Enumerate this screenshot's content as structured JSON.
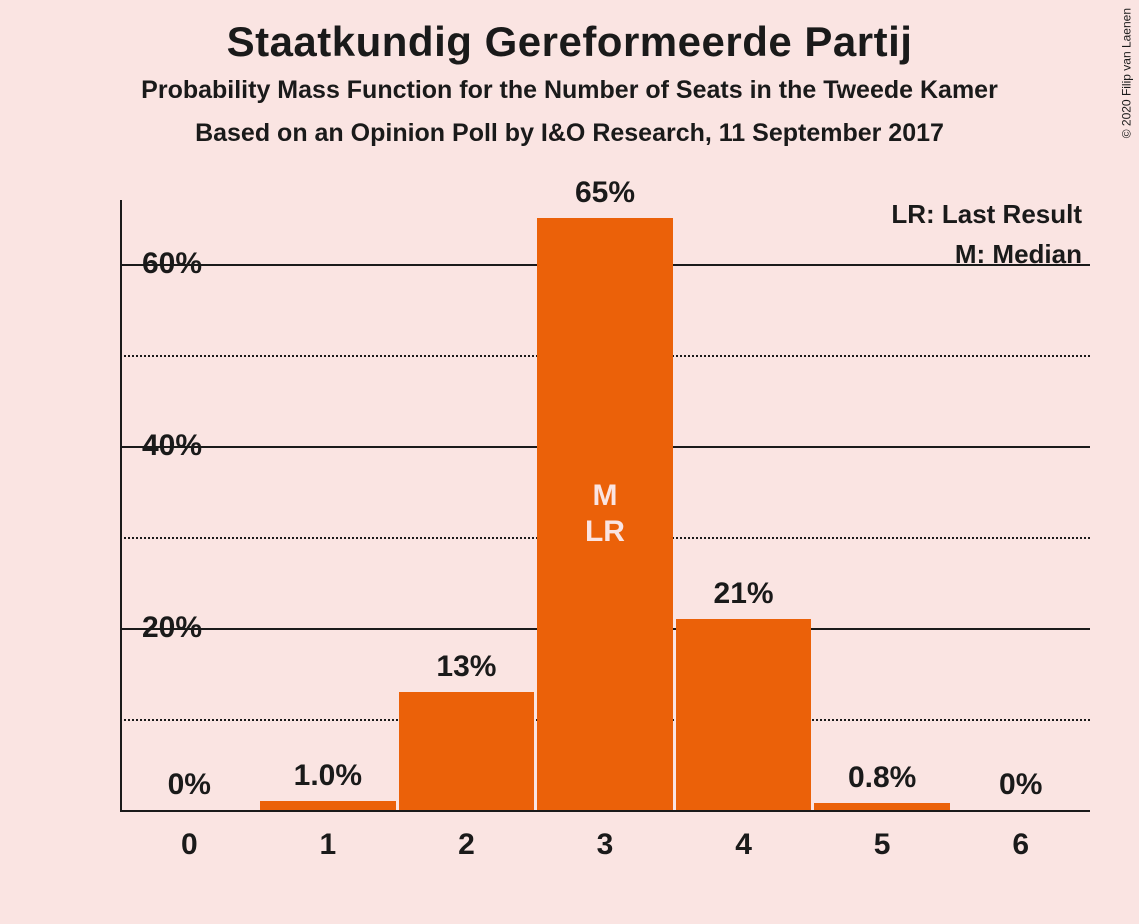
{
  "title": "Staatkundig Gereformeerde Partij",
  "subtitle1": "Probability Mass Function for the Number of Seats in the Tweede Kamer",
  "subtitle2": "Based on an Opinion Poll by I&O Research, 11 September 2017",
  "copyright": "© 2020 Filip van Laenen",
  "legend": {
    "lr": "LR: Last Result",
    "m": "M: Median"
  },
  "chart": {
    "type": "bar",
    "bar_color": "#eb6109",
    "bar_label_color": "#fae4e2",
    "text_color": "#1a1a1a",
    "background_color": "#fae4e2",
    "title_fontsize": 42,
    "subtitle_fontsize": 25,
    "axis_label_fontsize": 30,
    "bar_label_fontsize": 30,
    "ylim": [
      0,
      67
    ],
    "y_major_ticks": [
      0,
      20,
      40,
      60
    ],
    "y_minor_ticks": [
      10,
      30,
      50
    ],
    "y_tick_labels": [
      "20%",
      "40%",
      "60%"
    ],
    "categories": [
      "0",
      "1",
      "2",
      "3",
      "4",
      "5",
      "6"
    ],
    "values": [
      0,
      1.0,
      13,
      65,
      21,
      0.8,
      0
    ],
    "value_labels": [
      "0%",
      "1.0%",
      "13%",
      "65%",
      "21%",
      "0.8%",
      "0%"
    ],
    "median_index": 3,
    "last_result_index": 3,
    "inner_labels": {
      "m": "M",
      "lr": "LR"
    },
    "bar_width_ratio": 0.98,
    "grid_major_style": "solid",
    "grid_minor_style": "dotted",
    "grid_color": "#1a1a1a"
  }
}
